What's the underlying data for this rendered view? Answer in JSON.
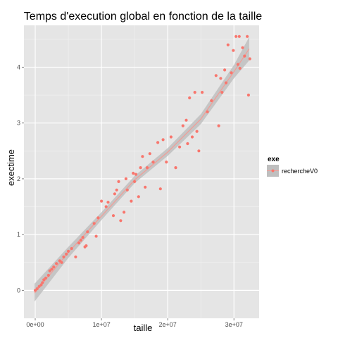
{
  "chart_data": {
    "type": "scatter",
    "title": "Temps d'execution global en fonction de la taille",
    "xlabel": "taille",
    "ylabel": "exectime",
    "xlim": [
      -1700000,
      33800000
    ],
    "ylim": [
      -0.5,
      4.75
    ],
    "x_ticks": [
      {
        "value": 0,
        "label": "0e+00"
      },
      {
        "value": 10000000,
        "label": "1e+07"
      },
      {
        "value": 20000000,
        "label": "2e+07"
      },
      {
        "value": 30000000,
        "label": "3e+07"
      }
    ],
    "y_ticks": [
      {
        "value": 0,
        "label": "0"
      },
      {
        "value": 1,
        "label": "1"
      },
      {
        "value": 2,
        "label": "2"
      },
      {
        "value": 3,
        "label": "3"
      },
      {
        "value": 4,
        "label": "4"
      }
    ],
    "grid": true,
    "legend": {
      "title": "exe",
      "position": "right",
      "entries": [
        "rechercheV0"
      ]
    },
    "colors": {
      "points": "#f8766d",
      "smooth": "#f29c96",
      "band": "#bfbfbf",
      "panel": "#e5e5e5",
      "grid": "#ffffff"
    },
    "series": [
      {
        "name": "rechercheV0",
        "points": [
          [
            0,
            0
          ],
          [
            300000,
            0.03
          ],
          [
            600000,
            0.07
          ],
          [
            900000,
            0.1
          ],
          [
            1100000,
            0.14
          ],
          [
            1300000,
            0.19
          ],
          [
            1600000,
            0.22
          ],
          [
            2000000,
            0.27
          ],
          [
            2200000,
            0.35
          ],
          [
            2500000,
            0.38
          ],
          [
            2800000,
            0.42
          ],
          [
            3200000,
            0.48
          ],
          [
            3700000,
            0.53
          ],
          [
            4000000,
            0.5
          ],
          [
            4300000,
            0.6
          ],
          [
            4700000,
            0.65
          ],
          [
            5000000,
            0.7
          ],
          [
            5500000,
            0.75
          ],
          [
            6100000,
            0.6
          ],
          [
            6600000,
            0.85
          ],
          [
            6900000,
            0.9
          ],
          [
            7200000,
            0.95
          ],
          [
            7500000,
            0.78
          ],
          [
            7700000,
            0.8
          ],
          [
            7900000,
            1.05
          ],
          [
            8900000,
            1.2
          ],
          [
            9200000,
            0.97
          ],
          [
            9500000,
            1.3
          ],
          [
            10000000,
            1.6
          ],
          [
            10700000,
            1.5
          ],
          [
            11000000,
            1.58
          ],
          [
            11800000,
            1.34
          ],
          [
            12000000,
            1.73
          ],
          [
            12300000,
            1.8
          ],
          [
            12600000,
            1.95
          ],
          [
            12900000,
            1.25
          ],
          [
            13400000,
            1.4
          ],
          [
            13900000,
            1.8
          ],
          [
            14500000,
            1.6
          ],
          [
            14800000,
            2.1
          ],
          [
            15000000,
            1.95
          ],
          [
            15200000,
            2.08
          ],
          [
            15600000,
            1.68
          ],
          [
            15900000,
            2.2
          ],
          [
            16200000,
            2.4
          ],
          [
            16600000,
            1.85
          ],
          [
            16900000,
            2.2
          ],
          [
            17300000,
            2.45
          ],
          [
            17800000,
            2.3
          ],
          [
            18500000,
            2.65
          ],
          [
            18900000,
            1.82
          ],
          [
            19300000,
            2.7
          ],
          [
            19800000,
            2.3
          ],
          [
            20500000,
            2.75
          ],
          [
            21200000,
            2.2
          ],
          [
            21800000,
            2.57
          ],
          [
            22300000,
            2.95
          ],
          [
            22800000,
            3.05
          ],
          [
            23000000,
            2.63
          ],
          [
            23300000,
            3.45
          ],
          [
            23700000,
            2.75
          ],
          [
            24100000,
            3.55
          ],
          [
            24400000,
            2.85
          ],
          [
            24700000,
            2.5
          ],
          [
            25200000,
            3.55
          ],
          [
            26000000,
            3.2
          ],
          [
            26600000,
            3.4
          ],
          [
            27300000,
            3.85
          ],
          [
            27700000,
            2.95
          ],
          [
            28000000,
            3.8
          ],
          [
            28200000,
            3.55
          ],
          [
            28600000,
            3.95
          ],
          [
            29100000,
            4.4
          ],
          [
            29600000,
            3.9
          ],
          [
            29900000,
            4.3
          ],
          [
            30300000,
            4.55
          ],
          [
            30600000,
            4.05
          ],
          [
            30900000,
            3.98
          ],
          [
            31300000,
            4.35
          ],
          [
            31600000,
            4.2
          ],
          [
            32000000,
            4.55
          ],
          [
            32200000,
            3.5
          ],
          [
            32400000,
            4.15
          ],
          [
            30800000,
            4.55
          ],
          [
            28800000,
            3.72
          ],
          [
            13700000,
            2.0
          ]
        ]
      }
    ],
    "smooth": {
      "x": [
        -100000,
        5000000,
        10000000,
        15000000,
        20000000,
        25000000,
        30000000,
        32300000
      ],
      "fit": [
        -0.05,
        0.68,
        1.33,
        1.98,
        2.48,
        3.07,
        3.92,
        4.33
      ],
      "lower": [
        -0.2,
        0.58,
        1.26,
        1.92,
        2.41,
        2.98,
        3.8,
        4.12
      ],
      "upper": [
        0.12,
        0.78,
        1.4,
        2.05,
        2.55,
        3.16,
        4.04,
        4.54
      ]
    }
  }
}
